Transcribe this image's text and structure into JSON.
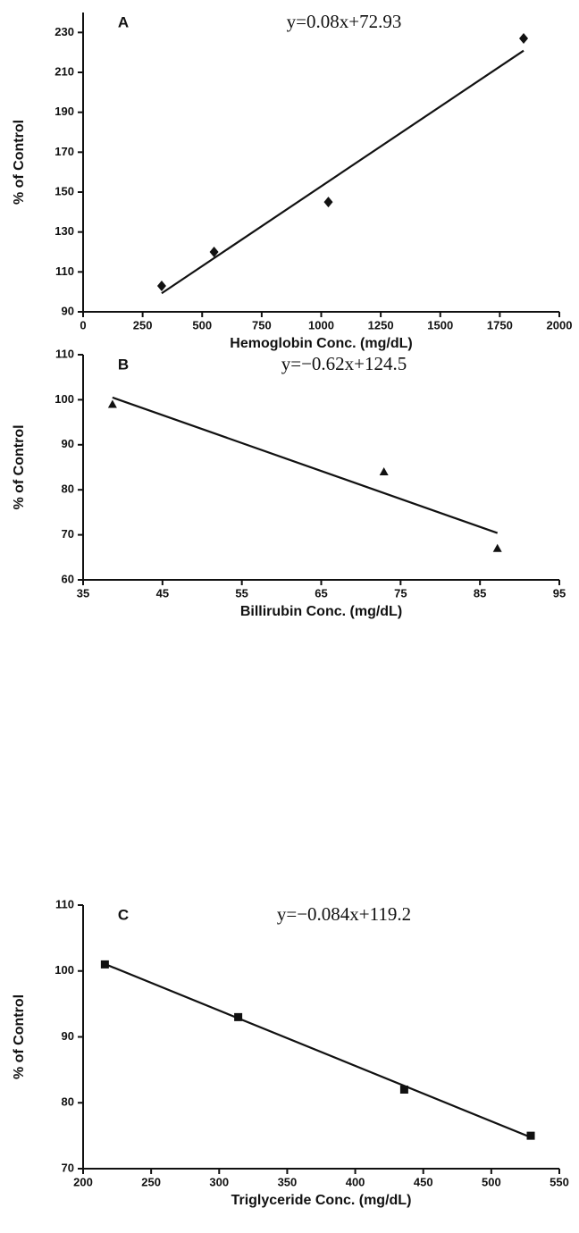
{
  "chart_data": [
    {
      "type": "scatter",
      "label": "A",
      "equation": "y=0.08x+72.93",
      "x_label": "Hemoglobin Conc. (mg/dL)",
      "y_label": "% of Control",
      "marker": "diamond",
      "color": "#111111",
      "x": [
        330,
        550,
        1030,
        1850
      ],
      "values": [
        103,
        120,
        145,
        227
      ],
      "fit": {
        "x": [
          330,
          1850
        ],
        "values": [
          99.3,
          220.9
        ]
      },
      "xlim": [
        0,
        2000
      ],
      "xticks": [
        0,
        250,
        500,
        750,
        1000,
        1250,
        1500,
        1750,
        2000
      ],
      "ylim": [
        90,
        240
      ],
      "yticks": [
        90,
        110,
        130,
        150,
        170,
        190,
        210,
        230
      ]
    },
    {
      "type": "scatter",
      "label": "B",
      "equation": "y=−0.62x+124.5",
      "x_label": "Billirubin Conc. (mg/dL)",
      "y_label": "% of Control",
      "marker": "triangle",
      "color": "#111111",
      "x": [
        38.7,
        72.9,
        87.2
      ],
      "values": [
        99,
        84,
        67
      ],
      "fit": {
        "x": [
          38.7,
          87.2
        ],
        "values": [
          100.5,
          70.4
        ]
      },
      "xlim": [
        35,
        95
      ],
      "xticks": [
        35,
        45,
        55,
        65,
        75,
        85,
        95
      ],
      "ylim": [
        60,
        110
      ],
      "yticks": [
        60,
        70,
        80,
        90,
        100,
        110
      ]
    },
    {
      "type": "scatter",
      "label": "C",
      "equation": "y=−0.084x+119.2",
      "x_label": "Triglyceride Conc. (mg/dL)",
      "y_label": "% of Control",
      "marker": "square",
      "color": "#111111",
      "x": [
        216,
        314,
        436,
        529
      ],
      "values": [
        101,
        93,
        82,
        75
      ],
      "fit": {
        "x": [
          216,
          529
        ],
        "values": [
          101.06,
          74.76
        ]
      },
      "xlim": [
        200,
        550
      ],
      "xticks": [
        200,
        250,
        300,
        350,
        400,
        450,
        500,
        550
      ],
      "ylim": [
        70,
        110
      ],
      "yticks": [
        70,
        80,
        90,
        100,
        110
      ]
    }
  ]
}
